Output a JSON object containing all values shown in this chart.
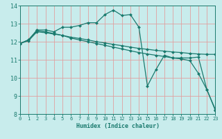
{
  "xlabel": "Humidex (Indice chaleur)",
  "bg_color": "#c8ecec",
  "grid_color": "#e0a0a0",
  "line_color": "#1a7a6e",
  "xlim": [
    0,
    23
  ],
  "ylim": [
    8,
    14
  ],
  "yticks": [
    8,
    9,
    10,
    11,
    12,
    13,
    14
  ],
  "xticks": [
    0,
    1,
    2,
    3,
    4,
    5,
    6,
    7,
    8,
    9,
    10,
    11,
    12,
    13,
    14,
    15,
    16,
    17,
    18,
    19,
    20,
    21,
    22,
    23
  ],
  "s1_x": [
    0,
    1,
    2,
    3,
    4,
    5,
    6,
    7,
    8,
    9,
    10,
    11,
    12,
    13,
    14,
    15,
    16,
    17,
    18,
    19,
    20,
    21,
    22,
    23
  ],
  "s1_y": [
    11.9,
    12.1,
    12.65,
    12.65,
    12.55,
    12.8,
    12.8,
    12.9,
    13.05,
    13.05,
    13.5,
    13.75,
    13.45,
    13.5,
    12.8,
    9.55,
    10.45,
    11.25,
    11.1,
    11.1,
    11.1,
    11.15,
    9.35,
    8.2
  ],
  "s2_x": [
    0,
    1,
    2,
    3,
    4,
    5,
    6,
    7,
    8,
    9,
    10,
    11,
    12,
    13,
    14,
    15,
    16,
    17,
    18,
    19,
    20,
    21,
    22,
    23
  ],
  "s2_y": [
    11.9,
    12.05,
    12.55,
    12.5,
    12.42,
    12.35,
    12.25,
    12.18,
    12.1,
    12.0,
    11.93,
    11.85,
    11.78,
    11.7,
    11.63,
    11.58,
    11.52,
    11.48,
    11.43,
    11.4,
    11.35,
    11.32,
    11.3,
    11.3
  ],
  "s3_x": [
    0,
    1,
    2,
    3,
    4,
    5,
    6,
    7,
    8,
    9,
    10,
    11,
    12,
    13,
    14,
    15,
    16,
    17,
    18,
    19,
    20,
    21,
    22,
    23
  ],
  "s3_y": [
    11.9,
    12.1,
    12.6,
    12.55,
    12.45,
    12.35,
    12.2,
    12.1,
    12.0,
    11.9,
    11.8,
    11.7,
    11.6,
    11.5,
    11.4,
    11.32,
    11.25,
    11.18,
    11.1,
    11.05,
    10.95,
    10.25,
    9.35,
    8.25
  ]
}
